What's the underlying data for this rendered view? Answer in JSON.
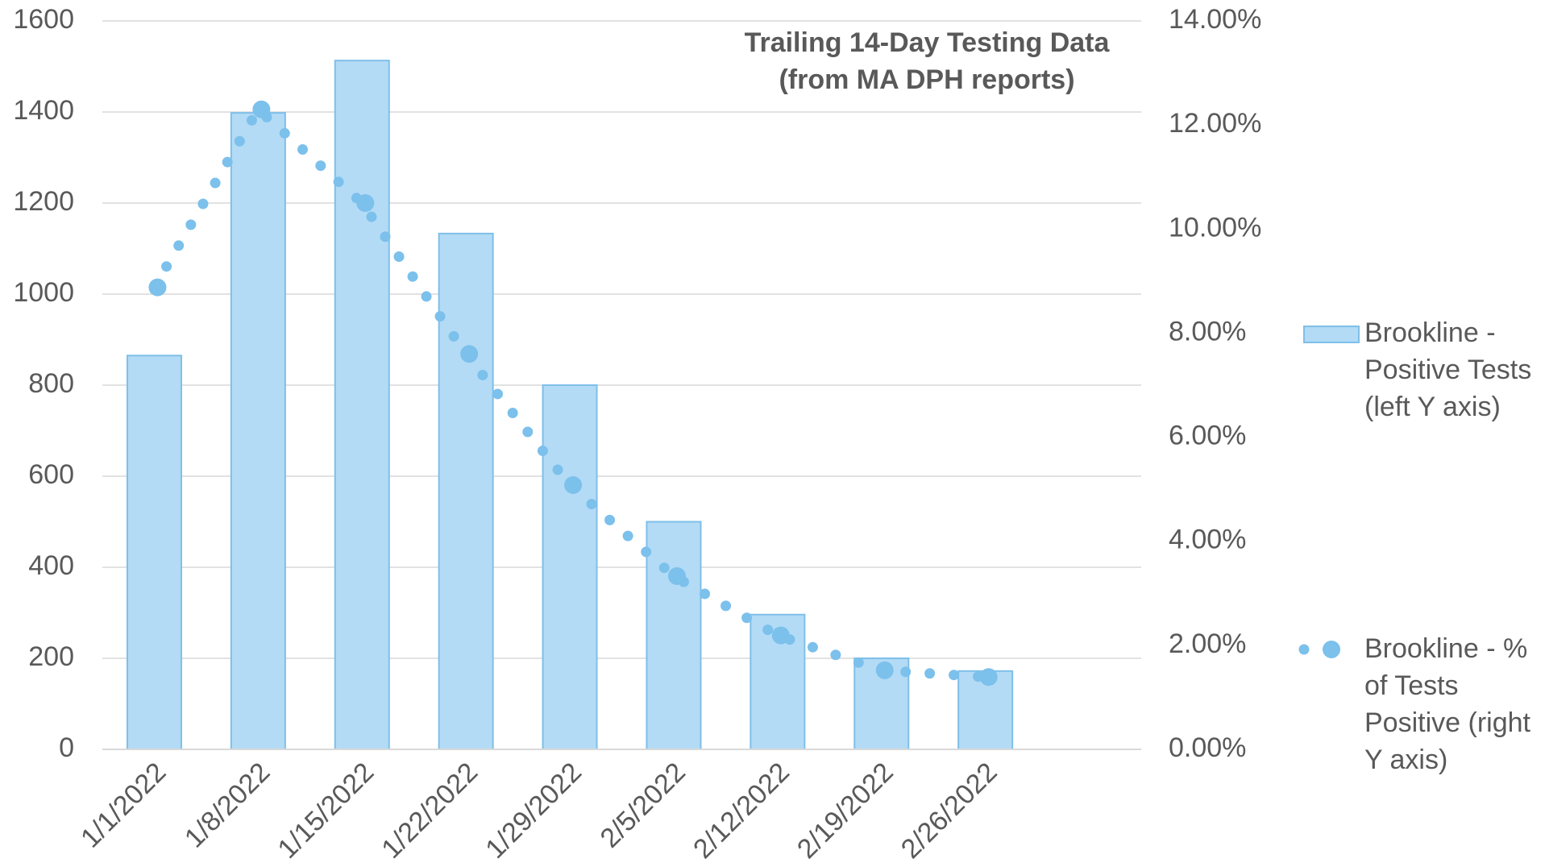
{
  "chart_data": {
    "type": "bar",
    "title": "Trailing 14-Day Testing Data\n(from MA DPH reports)",
    "categories": [
      "1/1/2022",
      "1/8/2022",
      "1/15/2022",
      "1/22/2022",
      "1/29/2022",
      "2/5/2022",
      "2/12/2022",
      "2/19/2022",
      "2/26/2022",
      null
    ],
    "series": [
      {
        "name": "Brookline - Positive Tests (left Y axis)",
        "color": "#b3dbf5",
        "values": [
          865,
          1398,
          1513,
          1133,
          800,
          500,
          296,
          200,
          172,
          null
        ]
      },
      {
        "name": "Brookline - % of Tests Positive (right Y axis)",
        "type": "line",
        "axis": "y2",
        "color": "#7cc0ec",
        "values": [
          8.88,
          12.3,
          10.5,
          7.6,
          5.08,
          3.33,
          2.19,
          1.52,
          1.39,
          null
        ]
      }
    ],
    "ylim": [
      0,
      1600
    ],
    "yticks": [
      0,
      200,
      400,
      600,
      800,
      1000,
      1200,
      1400,
      1600
    ],
    "y2lim": [
      0,
      14
    ],
    "y2ticks": [
      {
        "value": 0,
        "label": "0.00%"
      },
      {
        "value": 2,
        "label": "2.00%"
      },
      {
        "value": 4,
        "label": "4.00%"
      },
      {
        "value": 6,
        "label": "6.00%"
      },
      {
        "value": 8,
        "label": "8.00%"
      },
      {
        "value": 10,
        "label": "10.00%"
      },
      {
        "value": 12,
        "label": "12.00%"
      },
      {
        "value": 14,
        "label": "14.00%"
      }
    ],
    "grid": true,
    "legend": "right"
  }
}
